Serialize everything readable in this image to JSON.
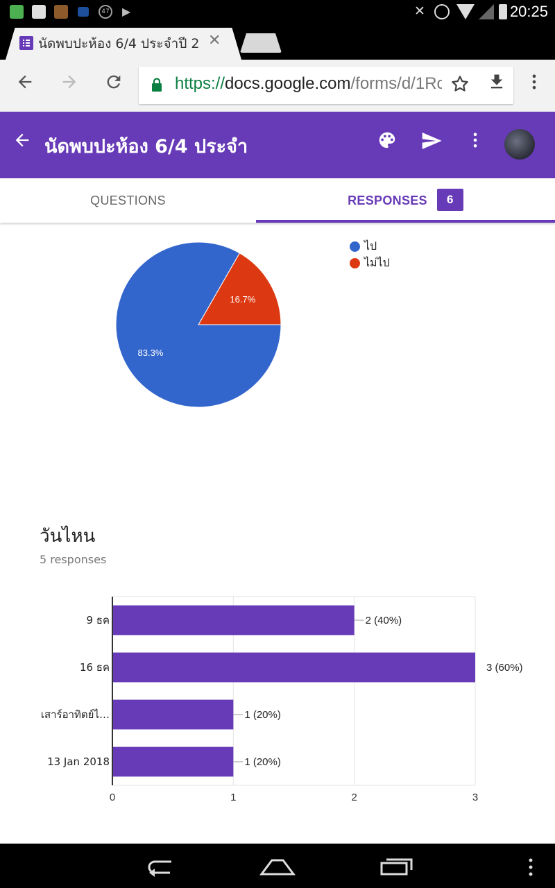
{
  "status_bar": {
    "time": "20:25",
    "left_icons": [
      "u-app-icon",
      "facebook-icon",
      "game-icon",
      "mail-icon",
      "count-47-icon",
      "play-store-icon"
    ],
    "notification_count": "47",
    "right_icons": [
      "mute-icon",
      "alarm-icon",
      "wifi-icon",
      "signal-off-icon",
      "battery-icon"
    ]
  },
  "browser": {
    "tab_title": "นัดพบปะห้อง 6/4 ประจำปี 2",
    "url_scheme": "https://",
    "url_host": "docs.google.com",
    "url_path": "/forms/d/1Rc"
  },
  "form": {
    "title": "นัดพบปะห้อง 6/4 ประจำ",
    "tabs": {
      "questions": "QUESTIONS",
      "responses": "RESPONSES",
      "responses_count": "6"
    }
  },
  "colors": {
    "brand": "#673ab7",
    "pie_blue": "#3366cc",
    "pie_red": "#dc3912"
  },
  "chart_data": [
    {
      "type": "pie",
      "slices": [
        {
          "label": "ไป",
          "value": 83.3,
          "color": "#3366cc"
        },
        {
          "label": "ไม่ไป",
          "value": 16.7,
          "color": "#dc3912"
        }
      ],
      "legend": "top-right"
    },
    {
      "type": "bar",
      "orientation": "horizontal",
      "title": "วันไหน",
      "subtitle": "5 responses",
      "categories": [
        "9 ธค",
        "16 ธค",
        "เสาร์อาทิตย์ไ…",
        "13 Jan 2018"
      ],
      "values": [
        2,
        3,
        1,
        1
      ],
      "data_labels": [
        "2 (40%)",
        "3 (60%)",
        "1 (20%)",
        "1 (20%)"
      ],
      "xlim": [
        0,
        3
      ],
      "x_ticks": [
        "0",
        "1",
        "2",
        "3"
      ],
      "color": "#673ab7",
      "grid": true
    }
  ]
}
